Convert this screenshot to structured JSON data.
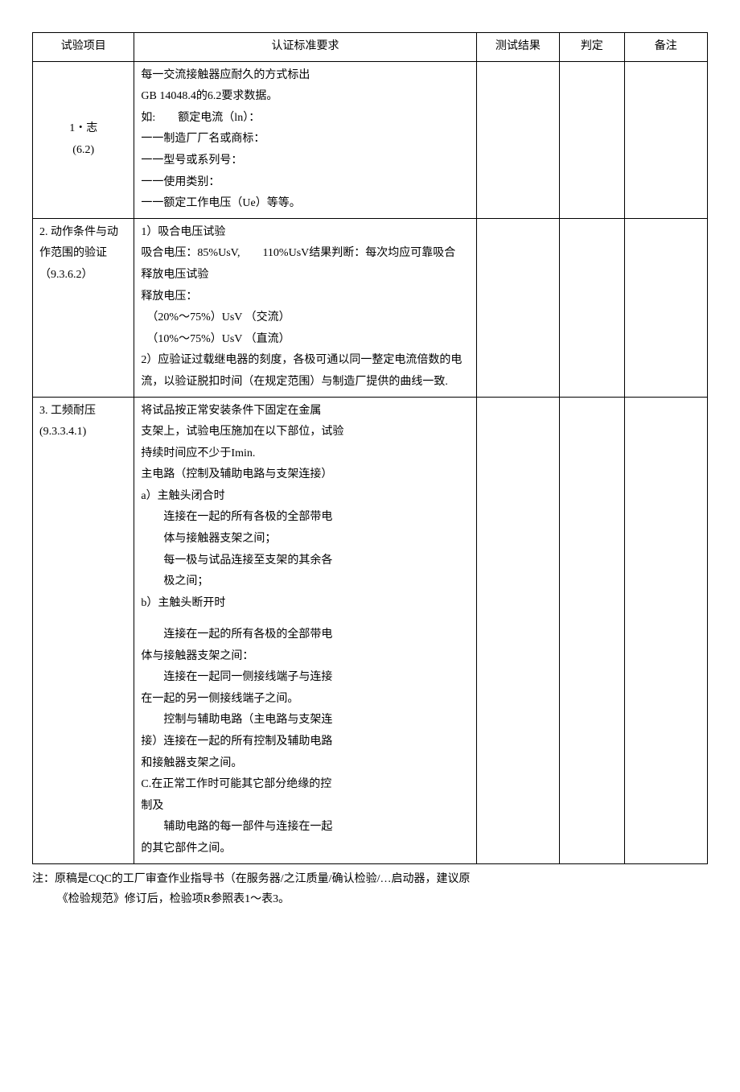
{
  "header": {
    "col1": "试验项目",
    "col2": "认证标准要求",
    "col3": "测试结果",
    "col4": "判定",
    "col5": "备注"
  },
  "rows": [
    {
      "label": "1・志\n(6.2)",
      "body": [
        "每一交流接触器应耐久的方式标出",
        "GB 14048.4的6.2要求数据。",
        "如:　　额定电流（ln）：",
        "一一制造厂厂名或商标：",
        "一一型号或系列号：",
        "一一使用类别：",
        "一一额定工作电压（Ue）等等。"
      ]
    },
    {
      "label": "2. 动作条件与动作范围的验证\n（9.3.6.2）",
      "body": [
        "1）吸合电压试验",
        "吸合电压：85%UsV,　　110%UsV结果判断：每次均应可靠吸合",
        "释放电压试验",
        "释放电压：",
        "　（20%～75%）UsV （交流）",
        "　（10%～75%）UsV （直流）",
        "2）应验证过载继电器的刻度，各极可通以同一整定电流倍数的电流，以验证脱扣时间（在规定范围）与制造厂提供的曲线一致."
      ]
    },
    {
      "label": "3. 工频耐压\n(9.3.3.4.1)",
      "body": [
        "将试品按正常安装条件下固定在金属",
        "支架上，试验电压施加在以下部位，试验",
        "持续时间应不少于Imin.",
        "主电路（控制及辅助电路与支架连接）",
        "a）主触头闭合时",
        "　　连接在一起的所有各极的全部带电",
        "　　体与接触器支架之间；",
        "　　每一极与试品连接至支架的其余各",
        "　　极之间；",
        "b）主触头断开时",
        "",
        "　　连接在一起的所有各极的全部带电",
        "体与接触器支架之间：",
        "　　连接在一起同一侧接线端子与连接",
        "在一起的另一侧接线端子之间。",
        "　　控制与辅助电路（主电路与支架连",
        "接）连接在一起的所有控制及辅助电路",
        "和接触器支架之间。",
        "C.在正常工作时可能其它部分绝缘的控",
        "制及",
        "　　辅助电路的每一部件与连接在一起",
        "的其它部件之间。"
      ]
    }
  ],
  "footnote": {
    "line1": "注：原稿是CQC的工厂审查作业指导书（在服务器/之江质量/确认检验/…启动器，建议原",
    "line2": "《检验规范》修订后，检验项R参照表1～表3。"
  }
}
